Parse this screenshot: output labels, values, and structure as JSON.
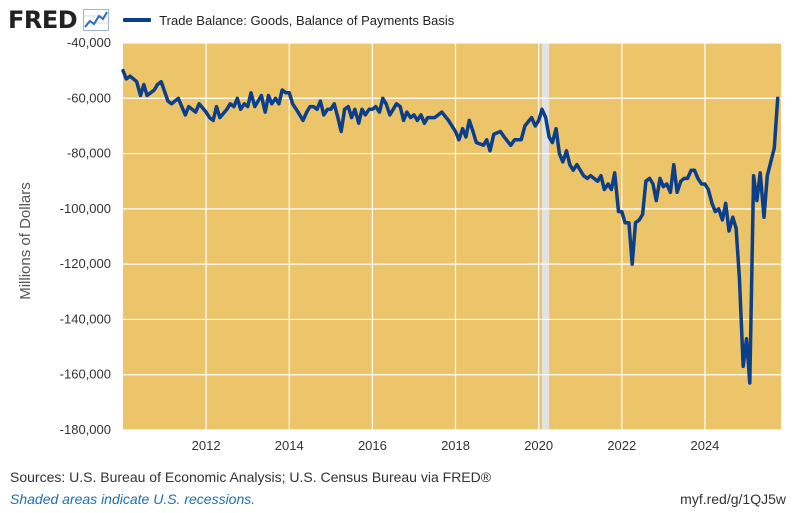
{
  "header": {
    "logo_text": "FRED",
    "legend_label": "Trade Balance: Goods, Balance of Payments Basis",
    "line_color": "#0b3f8a"
  },
  "footer": {
    "sources": "Sources: U.S. Bureau of Economic Analysis; U.S. Census Bureau via FRED®",
    "recession_note": "Shaded areas indicate U.S. recessions.",
    "url": "myf.red/g/1QJ5w"
  },
  "chart_data": {
    "type": "line",
    "title": "",
    "xlabel": "",
    "ylabel": "Millions of Dollars",
    "xlim": [
      2010.0,
      2025.83
    ],
    "ylim": [
      -180000,
      -40000
    ],
    "y_ticks": [
      -40000,
      -60000,
      -80000,
      -100000,
      -120000,
      -140000,
      -160000,
      -180000
    ],
    "y_tick_labels": [
      "-40,000",
      "-60,000",
      "-80,000",
      "-100,000",
      "-120,000",
      "-140,000",
      "-160,000",
      "-180,000"
    ],
    "x_ticks": [
      2012,
      2014,
      2016,
      2018,
      2020,
      2022,
      2024
    ],
    "x_tick_labels": [
      "2012",
      "2014",
      "2016",
      "2018",
      "2020",
      "2022",
      "2024"
    ],
    "grid": true,
    "plot_background": "#ecc46a",
    "recession_color": "#e2e2e2",
    "recessions": [
      [
        2020.08,
        2020.25
      ]
    ],
    "series": [
      {
        "name": "Trade Balance: Goods, Balance of Payments Basis",
        "color": "#0b3f8a",
        "points": [
          [
            2010.0,
            -50000
          ],
          [
            2010.08,
            -53000
          ],
          [
            2010.17,
            -52000
          ],
          [
            2010.33,
            -54000
          ],
          [
            2010.42,
            -59000
          ],
          [
            2010.5,
            -55000
          ],
          [
            2010.58,
            -59000
          ],
          [
            2010.75,
            -57000
          ],
          [
            2010.83,
            -55000
          ],
          [
            2010.92,
            -54000
          ],
          [
            2011.08,
            -61000
          ],
          [
            2011.17,
            -62000
          ],
          [
            2011.33,
            -60000
          ],
          [
            2011.5,
            -66000
          ],
          [
            2011.58,
            -63000
          ],
          [
            2011.75,
            -65000
          ],
          [
            2011.83,
            -62000
          ],
          [
            2012.0,
            -65000
          ],
          [
            2012.08,
            -67000
          ],
          [
            2012.17,
            -68000
          ],
          [
            2012.25,
            -63000
          ],
          [
            2012.33,
            -67000
          ],
          [
            2012.5,
            -64000
          ],
          [
            2012.58,
            -62000
          ],
          [
            2012.67,
            -63000
          ],
          [
            2012.75,
            -60000
          ],
          [
            2012.83,
            -64000
          ],
          [
            2012.92,
            -62000
          ],
          [
            2013.0,
            -63000
          ],
          [
            2013.08,
            -58000
          ],
          [
            2013.17,
            -63000
          ],
          [
            2013.33,
            -59000
          ],
          [
            2013.42,
            -65000
          ],
          [
            2013.5,
            -59000
          ],
          [
            2013.58,
            -62000
          ],
          [
            2013.67,
            -60000
          ],
          [
            2013.75,
            -62000
          ],
          [
            2013.83,
            -57000
          ],
          [
            2013.92,
            -58000
          ],
          [
            2014.0,
            -58000
          ],
          [
            2014.08,
            -62000
          ],
          [
            2014.17,
            -64000
          ],
          [
            2014.33,
            -68000
          ],
          [
            2014.42,
            -65000
          ],
          [
            2014.5,
            -63000
          ],
          [
            2014.58,
            -63000
          ],
          [
            2014.67,
            -64000
          ],
          [
            2014.75,
            -61000
          ],
          [
            2014.83,
            -66000
          ],
          [
            2014.92,
            -64000
          ],
          [
            2015.0,
            -64000
          ],
          [
            2015.08,
            -62000
          ],
          [
            2015.17,
            -67000
          ],
          [
            2015.25,
            -72000
          ],
          [
            2015.33,
            -64000
          ],
          [
            2015.42,
            -63000
          ],
          [
            2015.5,
            -67000
          ],
          [
            2015.58,
            -64000
          ],
          [
            2015.67,
            -69000
          ],
          [
            2015.75,
            -64000
          ],
          [
            2015.83,
            -66000
          ],
          [
            2015.92,
            -64000
          ],
          [
            2016.0,
            -64000
          ],
          [
            2016.08,
            -63000
          ],
          [
            2016.17,
            -65000
          ],
          [
            2016.25,
            -60000
          ],
          [
            2016.33,
            -62000
          ],
          [
            2016.42,
            -66000
          ],
          [
            2016.5,
            -64000
          ],
          [
            2016.58,
            -62000
          ],
          [
            2016.67,
            -63000
          ],
          [
            2016.75,
            -68000
          ],
          [
            2016.83,
            -65000
          ],
          [
            2016.92,
            -67000
          ],
          [
            2017.0,
            -66000
          ],
          [
            2017.08,
            -68000
          ],
          [
            2017.17,
            -66000
          ],
          [
            2017.25,
            -69000
          ],
          [
            2017.33,
            -67000
          ],
          [
            2017.5,
            -67000
          ],
          [
            2017.67,
            -65000
          ],
          [
            2017.83,
            -68000
          ],
          [
            2018.0,
            -72000
          ],
          [
            2018.08,
            -75000
          ],
          [
            2018.17,
            -71000
          ],
          [
            2018.25,
            -74000
          ],
          [
            2018.33,
            -68000
          ],
          [
            2018.42,
            -72000
          ],
          [
            2018.5,
            -76000
          ],
          [
            2018.67,
            -77000
          ],
          [
            2018.75,
            -75000
          ],
          [
            2018.83,
            -79000
          ],
          [
            2018.92,
            -73000
          ],
          [
            2019.08,
            -72000
          ],
          [
            2019.17,
            -74000
          ],
          [
            2019.33,
            -77000
          ],
          [
            2019.42,
            -75000
          ],
          [
            2019.5,
            -75000
          ],
          [
            2019.58,
            -75000
          ],
          [
            2019.67,
            -70000
          ],
          [
            2019.83,
            -67000
          ],
          [
            2019.92,
            -70000
          ],
          [
            2020.0,
            -68000
          ],
          [
            2020.08,
            -64000
          ],
          [
            2020.17,
            -67000
          ],
          [
            2020.25,
            -74000
          ],
          [
            2020.33,
            -76000
          ],
          [
            2020.42,
            -71000
          ],
          [
            2020.5,
            -80000
          ],
          [
            2020.58,
            -83000
          ],
          [
            2020.67,
            -79000
          ],
          [
            2020.75,
            -84000
          ],
          [
            2020.83,
            -86000
          ],
          [
            2020.92,
            -84000
          ],
          [
            2021.08,
            -88000
          ],
          [
            2021.17,
            -89000
          ],
          [
            2021.25,
            -88000
          ],
          [
            2021.42,
            -90000
          ],
          [
            2021.5,
            -88000
          ],
          [
            2021.58,
            -93000
          ],
          [
            2021.67,
            -91000
          ],
          [
            2021.75,
            -93000
          ],
          [
            2021.83,
            -87000
          ],
          [
            2021.92,
            -101000
          ],
          [
            2022.0,
            -101000
          ],
          [
            2022.08,
            -105000
          ],
          [
            2022.17,
            -105000
          ],
          [
            2022.25,
            -120000
          ],
          [
            2022.33,
            -105000
          ],
          [
            2022.42,
            -104000
          ],
          [
            2022.5,
            -102000
          ],
          [
            2022.58,
            -90000
          ],
          [
            2022.67,
            -89000
          ],
          [
            2022.75,
            -91000
          ],
          [
            2022.83,
            -97000
          ],
          [
            2022.92,
            -89000
          ],
          [
            2023.0,
            -92000
          ],
          [
            2023.08,
            -91000
          ],
          [
            2023.17,
            -94000
          ],
          [
            2023.25,
            -84000
          ],
          [
            2023.33,
            -94000
          ],
          [
            2023.42,
            -90000
          ],
          [
            2023.5,
            -89000
          ],
          [
            2023.58,
            -89000
          ],
          [
            2023.67,
            -86000
          ],
          [
            2023.75,
            -86000
          ],
          [
            2023.83,
            -89000
          ],
          [
            2023.92,
            -91000
          ],
          [
            2024.0,
            -91000
          ],
          [
            2024.08,
            -93000
          ],
          [
            2024.17,
            -98000
          ],
          [
            2024.25,
            -101000
          ],
          [
            2024.33,
            -100000
          ],
          [
            2024.42,
            -104000
          ],
          [
            2024.5,
            -98000
          ],
          [
            2024.58,
            -108000
          ],
          [
            2024.67,
            -103000
          ],
          [
            2024.75,
            -107000
          ],
          [
            2024.83,
            -125000
          ],
          [
            2024.92,
            -157000
          ],
          [
            2025.0,
            -147000
          ],
          [
            2025.08,
            -163000
          ],
          [
            2025.17,
            -88000
          ],
          [
            2025.25,
            -97000
          ],
          [
            2025.33,
            -87000
          ],
          [
            2025.42,
            -103000
          ],
          [
            2025.5,
            -88000
          ],
          [
            2025.67,
            -78000
          ],
          [
            2025.75,
            -60000
          ]
        ]
      }
    ]
  }
}
